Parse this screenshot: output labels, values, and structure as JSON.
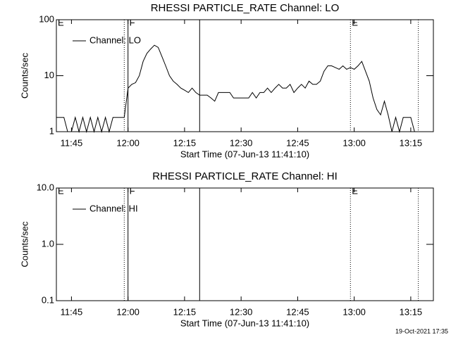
{
  "chart_data": [
    {
      "type": "line",
      "title": "RHESSI PARTICLE_RATE Channel: LO",
      "xlabel": "Start Time (07-Jun-13 11:41:10)",
      "ylabel": "Counts/sec",
      "log_y": true,
      "legend": "upper left",
      "xlim": [
        "11:41",
        "13:21"
      ],
      "xticks": [
        "11:45",
        "12:00",
        "12:15",
        "12:30",
        "12:45",
        "13:00",
        "13:15"
      ],
      "ylim": [
        1,
        100
      ],
      "yticks": [
        1,
        10,
        100
      ],
      "x": [
        "11:41",
        "11:42",
        "11:43",
        "11:44",
        "11:45",
        "11:46",
        "11:47",
        "11:48",
        "11:49",
        "11:50",
        "11:51",
        "11:52",
        "11:53",
        "11:54",
        "11:55",
        "11:56",
        "11:57",
        "11:58",
        "11:59",
        "12:00",
        "12:01",
        "12:02",
        "12:03",
        "12:04",
        "12:05",
        "12:06",
        "12:07",
        "12:08",
        "12:09",
        "12:10",
        "12:11",
        "12:12",
        "12:13",
        "12:14",
        "12:15",
        "12:16",
        "12:17",
        "12:18",
        "12:19",
        "12:20",
        "12:21",
        "12:22",
        "12:23",
        "12:24",
        "12:25",
        "12:26",
        "12:27",
        "12:28",
        "12:29",
        "12:30",
        "12:31",
        "12:32",
        "12:33",
        "12:34",
        "12:35",
        "12:36",
        "12:37",
        "12:38",
        "12:39",
        "12:40",
        "12:41",
        "12:42",
        "12:43",
        "12:44",
        "12:45",
        "12:46",
        "12:47",
        "12:48",
        "12:49",
        "12:50",
        "12:51",
        "12:52",
        "12:53",
        "12:54",
        "12:55",
        "12:56",
        "12:57",
        "12:58",
        "12:59",
        "13:00",
        "13:01",
        "13:02",
        "13:03",
        "13:04",
        "13:05",
        "13:06",
        "13:07",
        "13:08",
        "13:09",
        "13:10",
        "13:11",
        "13:12",
        "13:13",
        "13:14",
        "13:15",
        "13:16"
      ],
      "series": [
        {
          "name": "Channel: LO",
          "color": "#000000",
          "values": [
            1.8,
            1.8,
            1.8,
            1,
            1,
            1.8,
            1,
            1.8,
            1,
            1.8,
            1,
            1.8,
            1,
            1.8,
            1,
            1.8,
            1.8,
            1.8,
            1.8,
            6,
            7,
            7.5,
            10,
            18,
            25,
            30,
            35,
            32,
            22,
            15,
            10,
            8,
            7,
            6,
            5.5,
            5,
            6,
            5,
            4.5,
            4.5,
            4.5,
            4,
            3.5,
            5,
            5,
            5,
            5,
            4,
            4,
            4,
            4,
            4,
            5,
            4,
            5,
            5,
            6,
            5,
            6,
            7,
            6,
            6,
            7,
            5,
            6,
            7,
            6,
            8,
            7,
            7,
            8,
            12,
            15,
            15,
            14,
            13,
            15,
            13,
            14,
            13,
            15,
            18,
            12,
            8,
            4,
            2.5,
            2,
            3.5,
            2,
            1,
            1.8,
            1,
            1.8,
            1.8,
            1.8,
            1
          ]
        }
      ],
      "vlines": [
        {
          "x": "11:59",
          "style": "dotted"
        },
        {
          "x": "12:00",
          "style": "solid"
        },
        {
          "x": "12:19",
          "style": "solid"
        },
        {
          "x": "12:59",
          "style": "dotted"
        },
        {
          "x": "13:17",
          "style": "dotted"
        }
      ],
      "labels": [
        {
          "text": "E",
          "x": "11:41"
        },
        {
          "text": "F",
          "x": "12:00"
        },
        {
          "text": "E",
          "x": "12:59"
        }
      ]
    },
    {
      "type": "line",
      "title": "RHESSI PARTICLE_RATE Channel: HI",
      "xlabel": "Start Time (07-Jun-13 11:41:10)",
      "ylabel": "Counts/sec",
      "log_y": true,
      "legend": "upper left",
      "xlim": [
        "11:41",
        "13:21"
      ],
      "xticks": [
        "11:45",
        "12:00",
        "12:15",
        "12:30",
        "12:45",
        "13:00",
        "13:15"
      ],
      "ylim": [
        0.1,
        10
      ],
      "yticks": [
        0.1,
        {
          "value": 1,
          "label": "1.0"
        },
        {
          "value": 10,
          "label": "10.0"
        }
      ],
      "x": [],
      "series": [
        {
          "name": "Channel: HI",
          "color": "#000000",
          "values": []
        }
      ],
      "vlines": [
        {
          "x": "11:59",
          "style": "dotted"
        },
        {
          "x": "12:00",
          "style": "solid"
        },
        {
          "x": "12:19",
          "style": "solid"
        },
        {
          "x": "12:59",
          "style": "dotted"
        },
        {
          "x": "13:17",
          "style": "dotted"
        }
      ],
      "labels": [
        {
          "text": "E",
          "x": "11:41"
        },
        {
          "text": "F",
          "x": "12:00"
        },
        {
          "text": "E",
          "x": "12:59"
        }
      ]
    }
  ],
  "footer": "19-Oct-2021 17:35"
}
